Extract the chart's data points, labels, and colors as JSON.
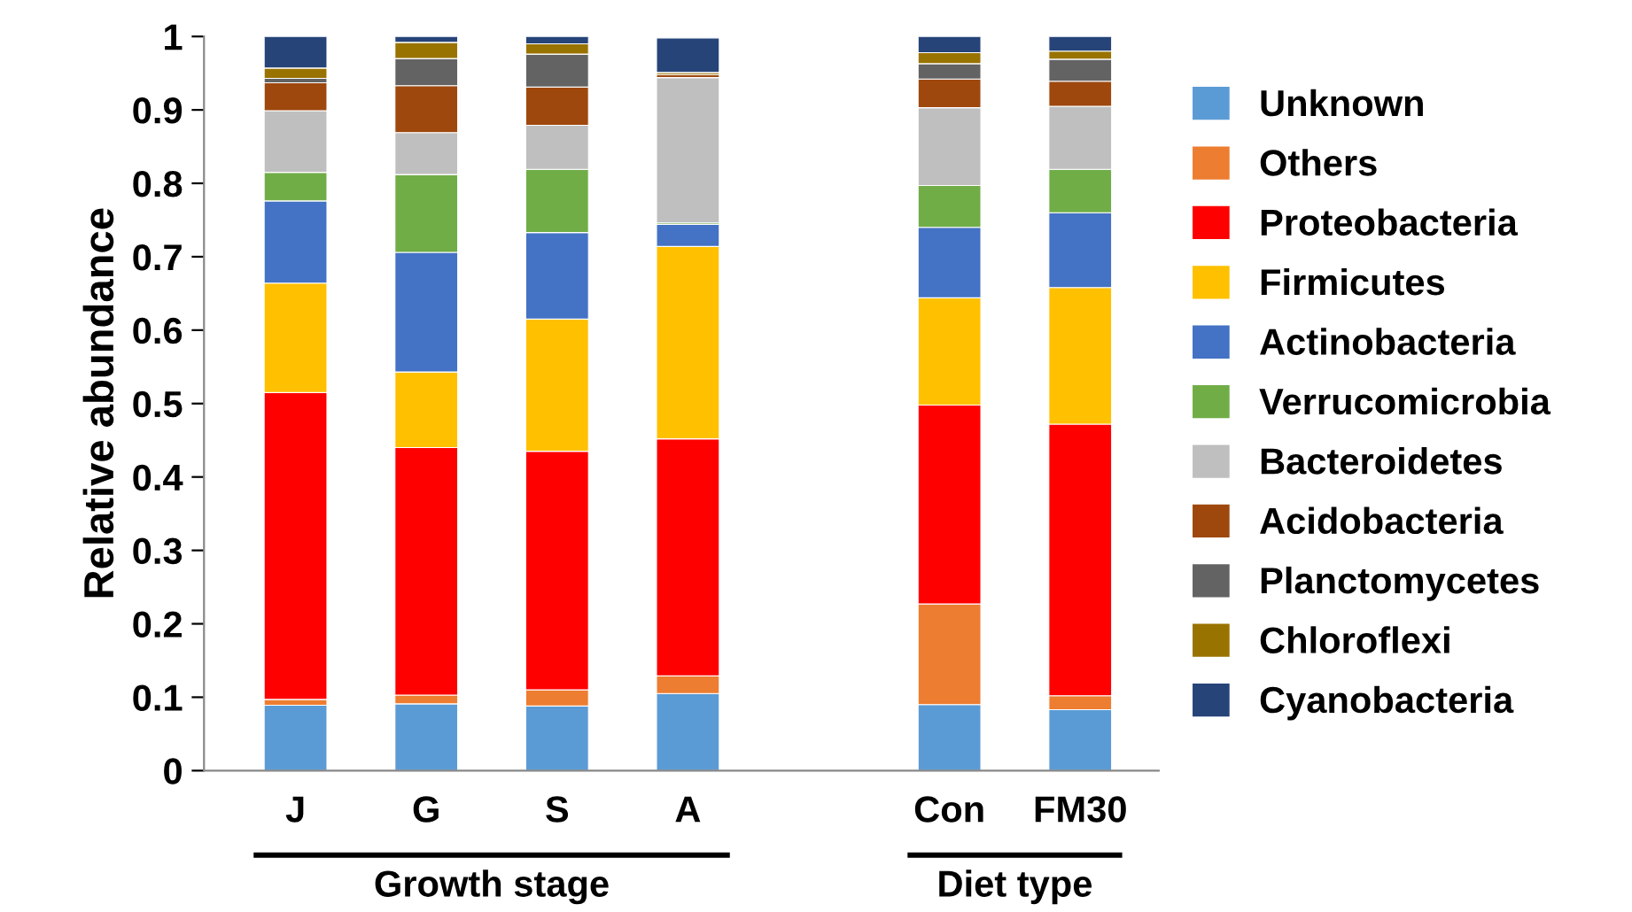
{
  "chart_data": {
    "type": "bar",
    "stacked": true,
    "ylabel": "Relative abundance",
    "categories": [
      "J",
      "G",
      "S",
      "A",
      null,
      "Con",
      "FM30"
    ],
    "series": [
      {
        "name": "Unknown",
        "color": "#5b9bd5",
        "values": [
          0.089,
          0.091,
          0.088,
          0.105,
          null,
          0.09,
          0.083
        ]
      },
      {
        "name": "Others",
        "color": "#ed7d31",
        "values": [
          0.008,
          0.012,
          0.022,
          0.024,
          null,
          0.137,
          0.019
        ]
      },
      {
        "name": "Proteobacteria",
        "color": "#ff0000",
        "values": [
          0.418,
          0.337,
          0.325,
          0.323,
          null,
          0.271,
          0.37
        ]
      },
      {
        "name": "Firmicutes",
        "color": "#ffc000",
        "values": [
          0.149,
          0.103,
          0.18,
          0.262,
          null,
          0.146,
          0.186
        ]
      },
      {
        "name": "Actinobacteria",
        "color": "#4472c4",
        "values": [
          0.112,
          0.163,
          0.118,
          0.03,
          null,
          0.096,
          0.102
        ]
      },
      {
        "name": "Verrucomicrobia",
        "color": "#70ad47",
        "values": [
          0.039,
          0.106,
          0.086,
          0.002,
          null,
          0.057,
          0.059
        ]
      },
      {
        "name": "Bacteroidetes",
        "color": "#bfbfbf",
        "values": [
          0.084,
          0.057,
          0.06,
          0.198,
          null,
          0.106,
          0.086
        ]
      },
      {
        "name": "Acidobacteria",
        "color": "#9e480e",
        "values": [
          0.038,
          0.064,
          0.052,
          0.004,
          null,
          0.039,
          0.034
        ]
      },
      {
        "name": "Planctomycetes",
        "color": "#636363",
        "values": [
          0.006,
          0.037,
          0.045,
          null,
          null,
          0.021,
          0.03
        ]
      },
      {
        "name": "Chloroflexi",
        "color": "#997300",
        "values": [
          0.014,
          0.022,
          0.014,
          0.003,
          null,
          0.015,
          0.011
        ]
      },
      {
        "name": "Cyanobacteria",
        "color": "#264478",
        "values": [
          0.043,
          0.008,
          0.01,
          0.047,
          null,
          0.022,
          0.02
        ]
      }
    ],
    "ylim": [
      0,
      1
    ],
    "yticks": [
      0,
      0.1,
      0.2,
      0.3,
      0.4,
      0.5,
      0.6,
      0.7,
      0.8,
      0.9,
      1
    ],
    "annotations": [
      "Growth stage",
      "Diet type"
    ],
    "grid": false,
    "legend": "right"
  }
}
